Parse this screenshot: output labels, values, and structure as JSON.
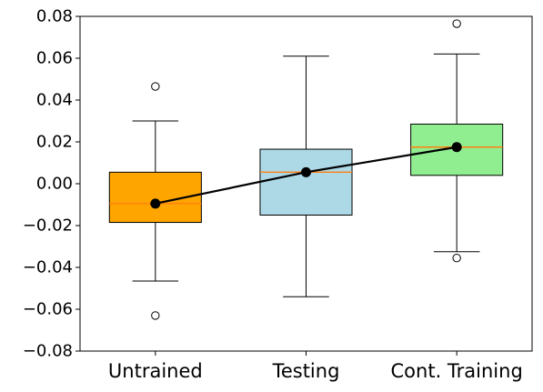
{
  "chart_data": {
    "type": "box",
    "title": "",
    "xlabel": "",
    "ylabel": "",
    "ylim": [
      -0.08,
      0.08
    ],
    "yticks": [
      -0.08,
      -0.06,
      -0.04,
      -0.02,
      0.0,
      0.02,
      0.04,
      0.06,
      0.08
    ],
    "ytick_labels": [
      "−0.08",
      "−0.06",
      "−0.04",
      "−0.02",
      "0.00",
      "0.02",
      "0.04",
      "0.06",
      "0.08"
    ],
    "categories": [
      "Untrained",
      "Testing",
      "Cont. Training"
    ],
    "grid": false,
    "boxes": [
      {
        "category": "Untrained",
        "color": "#ffa500",
        "whisker_low": -0.0465,
        "q1": -0.0185,
        "median": -0.0095,
        "q3": 0.0055,
        "whisker_high": 0.03,
        "mean": -0.0095,
        "outliers": [
          0.0465,
          -0.063
        ]
      },
      {
        "category": "Testing",
        "color": "#add8e6",
        "whisker_low": -0.054,
        "q1": -0.015,
        "median": 0.0055,
        "q3": 0.0165,
        "whisker_high": 0.061,
        "mean": 0.0055,
        "outliers": []
      },
      {
        "category": "Cont. Training",
        "color": "#90ee90",
        "whisker_low": -0.0325,
        "q1": 0.004,
        "median": 0.0175,
        "q3": 0.0285,
        "whisker_high": 0.062,
        "mean": 0.0175,
        "outliers": [
          0.0765,
          -0.0355
        ]
      }
    ],
    "mean_line": {
      "color": "#000000",
      "values": [
        -0.0095,
        0.0055,
        0.0175
      ]
    },
    "median_color": "#ff7f0e"
  }
}
